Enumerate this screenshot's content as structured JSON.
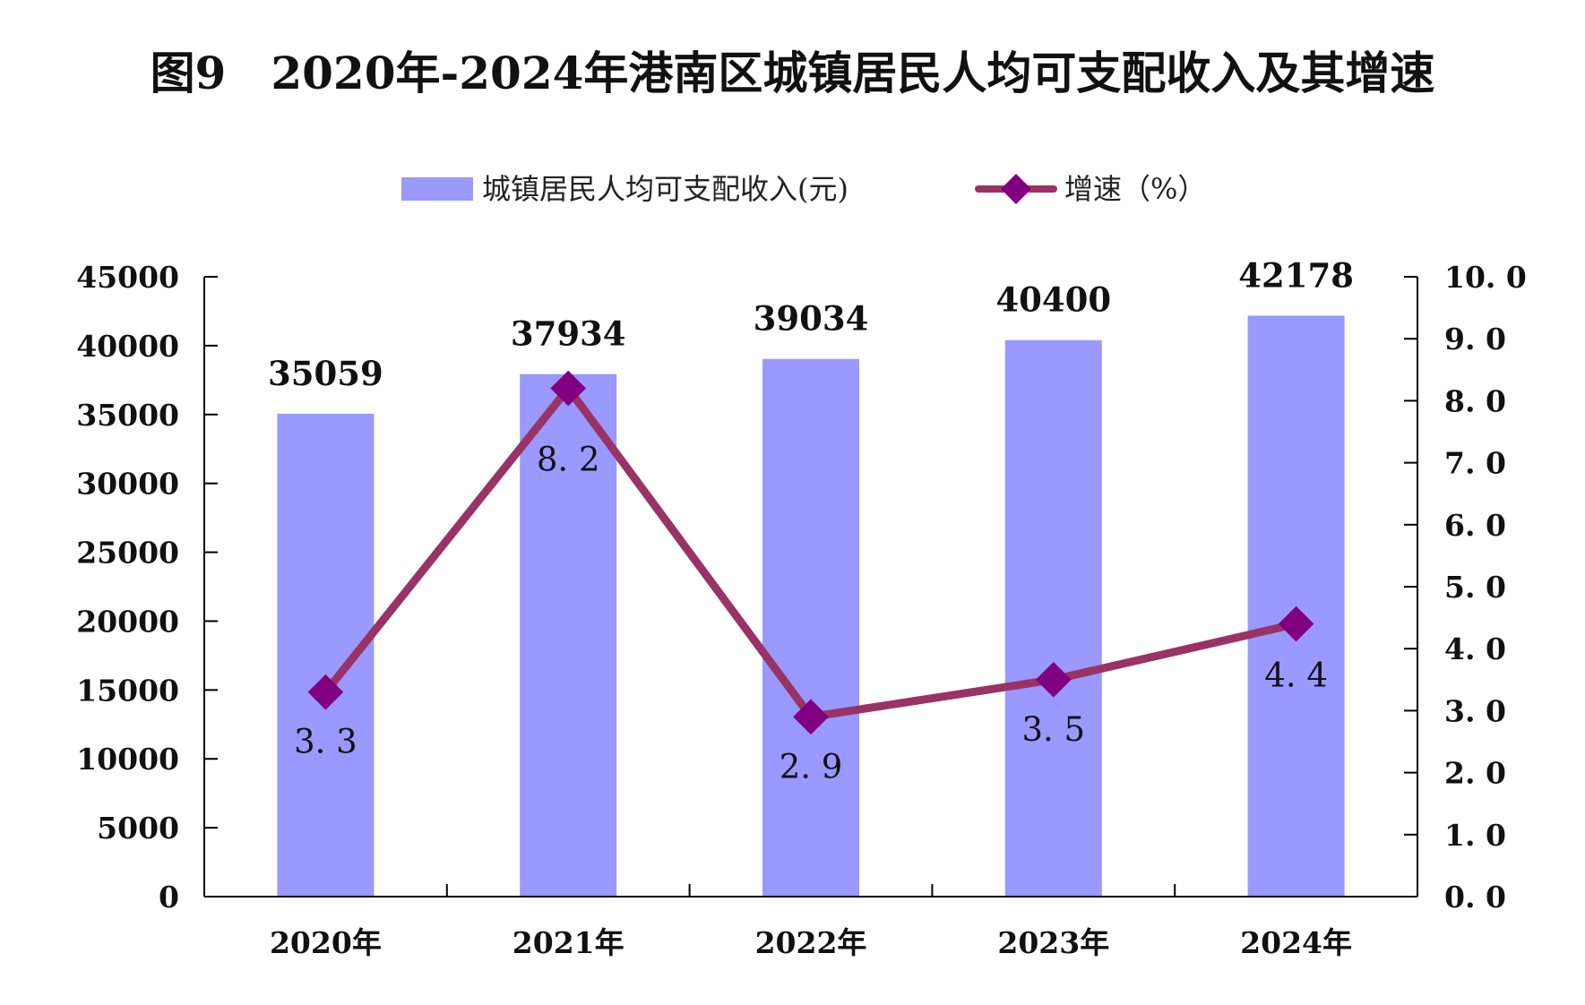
{
  "chart_data": {
    "type": "bar+line",
    "title": "图9　2020年-2024年港南区城镇居民人均可支配收入及其增速",
    "categories": [
      "2020年",
      "2021年",
      "2022年",
      "2023年",
      "2024年"
    ],
    "series": [
      {
        "name": "城镇居民人均可支配收入(元)",
        "type": "bar",
        "axis": "left",
        "values": [
          35059,
          37934,
          39034,
          40400,
          42178
        ],
        "labels": [
          "35059",
          "37934",
          "39034",
          "40400",
          "42178"
        ],
        "color": "#9999ff"
      },
      {
        "name": "增速（%）",
        "type": "line",
        "axis": "right",
        "values": [
          3.3,
          8.2,
          2.9,
          3.5,
          4.4
        ],
        "labels": [
          "3. 3",
          "8. 2",
          "2. 9",
          "3. 5",
          "4. 4"
        ],
        "color": "#993366",
        "marker_color": "#800080"
      }
    ],
    "y_left": {
      "ylim": [
        0,
        45000
      ],
      "ticks": [
        "0",
        "5000",
        "10000",
        "15000",
        "20000",
        "25000",
        "30000",
        "35000",
        "40000",
        "45000"
      ]
    },
    "y_right": {
      "ylim": [
        0,
        10
      ],
      "ticks": [
        "0. 0",
        "1. 0",
        "2. 0",
        "3. 0",
        "4. 0",
        "5. 0",
        "6. 0",
        "7. 0",
        "8. 0",
        "9. 0",
        "10. 0"
      ]
    },
    "grid": false,
    "legend_position": "top-center"
  }
}
